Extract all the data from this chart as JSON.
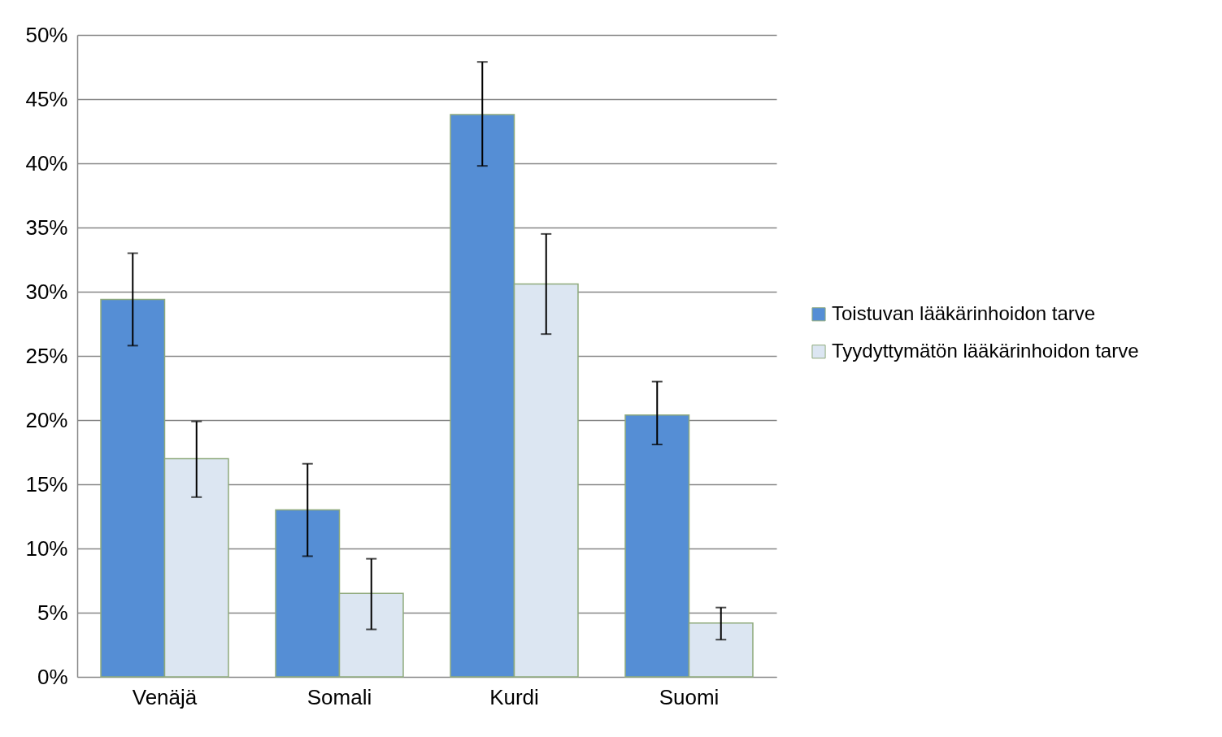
{
  "chart_data": {
    "type": "bar",
    "categories": [
      "Venäjä",
      "Somali",
      "Kurdi",
      "Suomi"
    ],
    "series": [
      {
        "name": "Toistuvan lääkärinhoidon tarve",
        "color": "#558ed5",
        "values": [
          29.4,
          13.0,
          43.8,
          20.4
        ],
        "errors": [
          [
            25.8,
            33.0
          ],
          [
            9.4,
            16.6
          ],
          [
            39.8,
            47.9
          ],
          [
            18.1,
            23.0
          ]
        ]
      },
      {
        "name": "Tyydyttymätön lääkärinhoidon tarve",
        "color": "#dce6f2",
        "values": [
          17.0,
          6.5,
          30.6,
          4.2
        ],
        "errors": [
          [
            14.0,
            19.9
          ],
          [
            3.7,
            9.2
          ],
          [
            26.7,
            34.5
          ],
          [
            2.9,
            5.4
          ]
        ]
      }
    ],
    "ylim": [
      0,
      50
    ],
    "yticks": [
      {
        "value": 0,
        "label": "0%"
      },
      {
        "value": 5,
        "label": "5%"
      },
      {
        "value": 10,
        "label": "10%"
      },
      {
        "value": 15,
        "label": "15%"
      },
      {
        "value": 20,
        "label": "20%"
      },
      {
        "value": 25,
        "label": "25%"
      },
      {
        "value": 30,
        "label": "30%"
      },
      {
        "value": 35,
        "label": "35%"
      },
      {
        "value": 40,
        "label": "40%"
      },
      {
        "value": 45,
        "label": "45%"
      },
      {
        "value": 50,
        "label": "50%"
      }
    ],
    "grid": "y",
    "legend": "right"
  }
}
